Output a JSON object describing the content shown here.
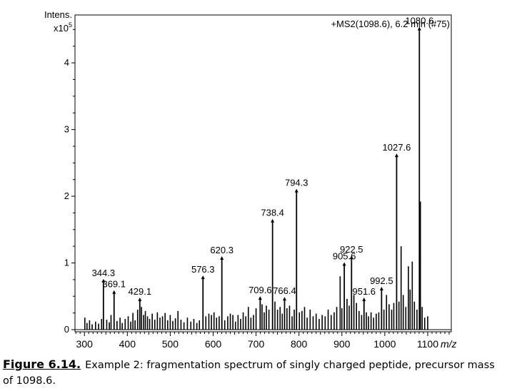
{
  "chart_data": {
    "type": "bar",
    "title": "+MS2(1098.6), 6.2 min (#75)",
    "ylabel": "Intens.",
    "ylabel_scale_base": "x10",
    "ylabel_scale_exp": "5",
    "xlabel": "m/z",
    "xlim": [
      278,
      1155
    ],
    "ylim": [
      0,
      4.6
    ],
    "x_ticks": [
      300,
      400,
      500,
      600,
      700,
      800,
      900,
      1000,
      1100
    ],
    "y_ticks": [
      0,
      1,
      2,
      3,
      4
    ],
    "grid": false,
    "labeled_peaks": [
      {
        "label": "344.3",
        "x": 344.3,
        "y": 0.74
      },
      {
        "label": "369.1",
        "x": 369.1,
        "y": 0.57
      },
      {
        "label": "429.1",
        "x": 429.1,
        "y": 0.46
      },
      {
        "label": "576.3",
        "x": 576.3,
        "y": 0.79
      },
      {
        "label": "620.3",
        "x": 620.3,
        "y": 1.08
      },
      {
        "label": "709.6",
        "x": 709.6,
        "y": 0.48
      },
      {
        "label": "738.4",
        "x": 738.4,
        "y": 1.64
      },
      {
        "label": "766.4",
        "x": 766.4,
        "y": 0.47
      },
      {
        "label": "794.3",
        "x": 794.3,
        "y": 2.09
      },
      {
        "label": "905.6",
        "x": 905.6,
        "y": 0.99
      },
      {
        "label": "922.5",
        "x": 922.5,
        "y": 1.09
      },
      {
        "label": "951.6",
        "x": 951.6,
        "y": 0.46
      },
      {
        "label": "992.5",
        "x": 992.5,
        "y": 0.62
      },
      {
        "label": "1027.6",
        "x": 1027.6,
        "y": 2.62
      },
      {
        "label": "1080.6",
        "x": 1080.6,
        "y": 4.52
      }
    ],
    "unlabeled_peaks": [
      {
        "x": 301,
        "y": 0.18
      },
      {
        "x": 306,
        "y": 0.1
      },
      {
        "x": 312,
        "y": 0.14
      },
      {
        "x": 318,
        "y": 0.08
      },
      {
        "x": 326,
        "y": 0.12
      },
      {
        "x": 333,
        "y": 0.09
      },
      {
        "x": 340,
        "y": 0.16
      },
      {
        "x": 352,
        "y": 0.15
      },
      {
        "x": 358,
        "y": 0.11
      },
      {
        "x": 362,
        "y": 0.22
      },
      {
        "x": 376,
        "y": 0.13
      },
      {
        "x": 383,
        "y": 0.18
      },
      {
        "x": 388,
        "y": 0.1
      },
      {
        "x": 395,
        "y": 0.16
      },
      {
        "x": 402,
        "y": 0.2
      },
      {
        "x": 408,
        "y": 0.12
      },
      {
        "x": 413,
        "y": 0.25
      },
      {
        "x": 418,
        "y": 0.14
      },
      {
        "x": 424,
        "y": 0.3
      },
      {
        "x": 433,
        "y": 0.34
      },
      {
        "x": 438,
        "y": 0.22
      },
      {
        "x": 442,
        "y": 0.28
      },
      {
        "x": 447,
        "y": 0.2
      },
      {
        "x": 452,
        "y": 0.16
      },
      {
        "x": 458,
        "y": 0.24
      },
      {
        "x": 464,
        "y": 0.15
      },
      {
        "x": 470,
        "y": 0.26
      },
      {
        "x": 476,
        "y": 0.18
      },
      {
        "x": 482,
        "y": 0.2
      },
      {
        "x": 488,
        "y": 0.25
      },
      {
        "x": 494,
        "y": 0.14
      },
      {
        "x": 500,
        "y": 0.22
      },
      {
        "x": 506,
        "y": 0.13
      },
      {
        "x": 512,
        "y": 0.17
      },
      {
        "x": 518,
        "y": 0.28
      },
      {
        "x": 525,
        "y": 0.15
      },
      {
        "x": 532,
        "y": 0.11
      },
      {
        "x": 540,
        "y": 0.18
      },
      {
        "x": 548,
        "y": 0.12
      },
      {
        "x": 555,
        "y": 0.16
      },
      {
        "x": 562,
        "y": 0.1
      },
      {
        "x": 568,
        "y": 0.14
      },
      {
        "x": 583,
        "y": 0.2
      },
      {
        "x": 590,
        "y": 0.24
      },
      {
        "x": 596,
        "y": 0.22
      },
      {
        "x": 602,
        "y": 0.26
      },
      {
        "x": 608,
        "y": 0.18
      },
      {
        "x": 614,
        "y": 0.2
      },
      {
        "x": 627,
        "y": 0.14
      },
      {
        "x": 634,
        "y": 0.2
      },
      {
        "x": 640,
        "y": 0.24
      },
      {
        "x": 646,
        "y": 0.22
      },
      {
        "x": 652,
        "y": 0.12
      },
      {
        "x": 658,
        "y": 0.22
      },
      {
        "x": 664,
        "y": 0.16
      },
      {
        "x": 670,
        "y": 0.26
      },
      {
        "x": 676,
        "y": 0.2
      },
      {
        "x": 682,
        "y": 0.34
      },
      {
        "x": 688,
        "y": 0.18
      },
      {
        "x": 694,
        "y": 0.22
      },
      {
        "x": 700,
        "y": 0.32
      },
      {
        "x": 714,
        "y": 0.38
      },
      {
        "x": 719,
        "y": 0.26
      },
      {
        "x": 724,
        "y": 0.36
      },
      {
        "x": 730,
        "y": 0.3
      },
      {
        "x": 744,
        "y": 0.42
      },
      {
        "x": 750,
        "y": 0.3
      },
      {
        "x": 756,
        "y": 0.34
      },
      {
        "x": 761,
        "y": 0.24
      },
      {
        "x": 772,
        "y": 0.32
      },
      {
        "x": 778,
        "y": 0.36
      },
      {
        "x": 784,
        "y": 0.2
      },
      {
        "x": 789,
        "y": 0.3
      },
      {
        "x": 801,
        "y": 0.26
      },
      {
        "x": 807,
        "y": 0.28
      },
      {
        "x": 813,
        "y": 0.34
      },
      {
        "x": 819,
        "y": 0.18
      },
      {
        "x": 826,
        "y": 0.3
      },
      {
        "x": 833,
        "y": 0.2
      },
      {
        "x": 840,
        "y": 0.24
      },
      {
        "x": 847,
        "y": 0.16
      },
      {
        "x": 854,
        "y": 0.22
      },
      {
        "x": 861,
        "y": 0.2
      },
      {
        "x": 868,
        "y": 0.3
      },
      {
        "x": 875,
        "y": 0.22
      },
      {
        "x": 882,
        "y": 0.26
      },
      {
        "x": 888,
        "y": 0.34
      },
      {
        "x": 896,
        "y": 0.8
      },
      {
        "x": 900,
        "y": 0.32
      },
      {
        "x": 912,
        "y": 0.46
      },
      {
        "x": 917,
        "y": 0.36
      },
      {
        "x": 928,
        "y": 0.52
      },
      {
        "x": 934,
        "y": 0.4
      },
      {
        "x": 940,
        "y": 0.28
      },
      {
        "x": 946,
        "y": 0.22
      },
      {
        "x": 957,
        "y": 0.26
      },
      {
        "x": 962,
        "y": 0.2
      },
      {
        "x": 968,
        "y": 0.26
      },
      {
        "x": 974,
        "y": 0.18
      },
      {
        "x": 980,
        "y": 0.24
      },
      {
        "x": 986,
        "y": 0.26
      },
      {
        "x": 998,
        "y": 0.3
      },
      {
        "x": 1004,
        "y": 0.52
      },
      {
        "x": 1010,
        "y": 0.38
      },
      {
        "x": 1016,
        "y": 0.3
      },
      {
        "x": 1021,
        "y": 0.4
      },
      {
        "x": 1033,
        "y": 0.42
      },
      {
        "x": 1038,
        "y": 1.25
      },
      {
        "x": 1043,
        "y": 0.52
      },
      {
        "x": 1049,
        "y": 0.34
      },
      {
        "x": 1055,
        "y": 0.95
      },
      {
        "x": 1059,
        "y": 0.6
      },
      {
        "x": 1064,
        "y": 1.02
      },
      {
        "x": 1069,
        "y": 0.42
      },
      {
        "x": 1075,
        "y": 0.3
      },
      {
        "x": 1083,
        "y": 1.92
      },
      {
        "x": 1087,
        "y": 0.34
      },
      {
        "x": 1093,
        "y": 0.18
      },
      {
        "x": 1100,
        "y": 0.2
      }
    ]
  },
  "caption": {
    "figure_number": "Figure 6.14.",
    "text": "Example 2: fragmentation spectrum of singly charged peptide, precursor mass of 1098.6."
  }
}
